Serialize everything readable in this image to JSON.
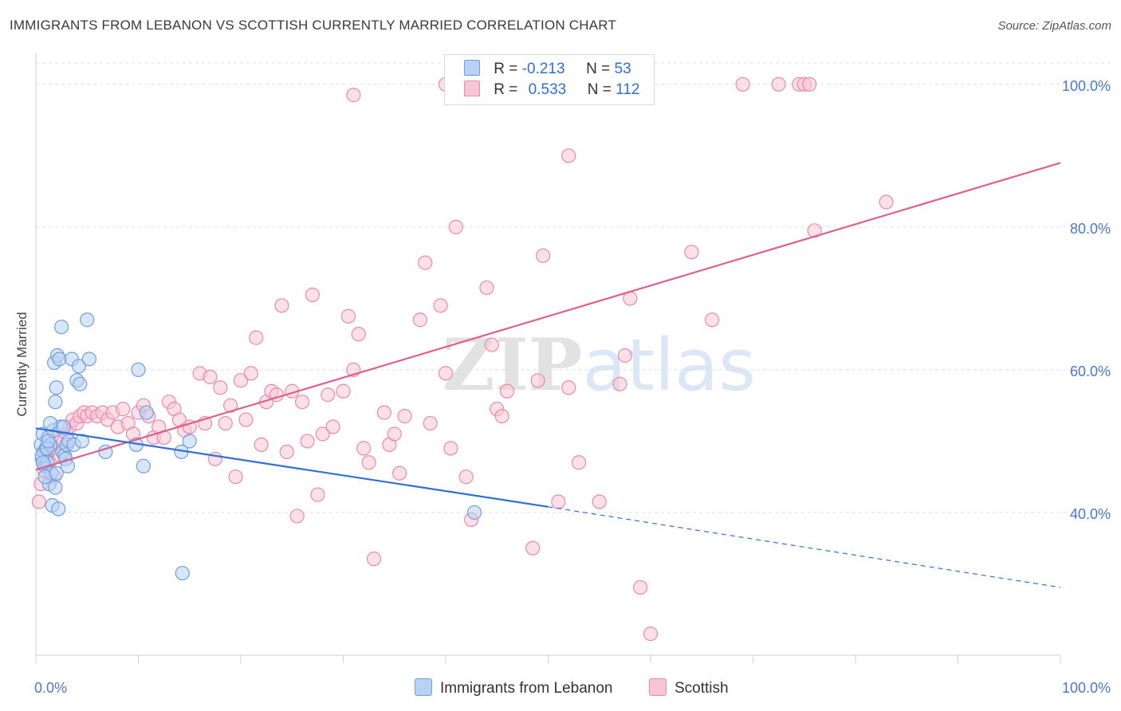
{
  "title": "IMMIGRANTS FROM LEBANON VS SCOTTISH CURRENTLY MARRIED CORRELATION CHART",
  "source": "Source: ZipAtlas.com",
  "watermark": {
    "zip": "ZIP",
    "atlas": "atlas"
  },
  "legend": {
    "rows": [
      {
        "r_label": "R =",
        "r_value": "-0.213",
        "n_label": "N =",
        "n_value": "53"
      },
      {
        "r_label": "R =",
        "r_value": "0.533",
        "n_label": "N =",
        "n_value": "112"
      }
    ]
  },
  "bottom_legend": [
    "Immigrants from Lebanon",
    "Scottish"
  ],
  "colors": {
    "blue_fill": "#b9d1f3",
    "blue_stroke": "#6e9fdf",
    "blue_line": "#2f6fd6",
    "pink_fill": "#f7c6d6",
    "pink_stroke": "#e98aaa",
    "pink_line": "#e0608a",
    "grid": "#dddddd",
    "tick_label": "#4a78c8"
  },
  "chart_data": {
    "type": "scatter",
    "title": "IMMIGRANTS FROM LEBANON VS SCOTTISH CURRENTLY MARRIED CORRELATION CHART",
    "xlabel": "",
    "ylabel": "Currently Married",
    "xlim": [
      0,
      100
    ],
    "ylim": [
      20,
      104
    ],
    "x_tick_labels": [
      "0.0%",
      "100.0%"
    ],
    "y_ticks": [
      40,
      60,
      80,
      100
    ],
    "y_tick_labels": [
      "40.0%",
      "60.0%",
      "80.0%",
      "100.0%"
    ],
    "grid": "horizontal dashed",
    "legend_position": "top-center",
    "series": [
      {
        "name": "Immigrants from Lebanon",
        "R": -0.213,
        "N": 53,
        "trend": {
          "x0": 0,
          "y0": 51.8,
          "x1": 50,
          "y1": 40.8,
          "dashed_to_x": 100,
          "dashed_to_y": 29.5
        },
        "points": [
          [
            0.5,
            49.5
          ],
          [
            0.6,
            47.5
          ],
          [
            0.7,
            51.0
          ],
          [
            0.8,
            48.5
          ],
          [
            0.9,
            46.5
          ],
          [
            1.0,
            49.0
          ],
          [
            1.1,
            47.0
          ],
          [
            1.2,
            50.5
          ],
          [
            1.3,
            44.0
          ],
          [
            1.4,
            49.5
          ],
          [
            1.5,
            45.5
          ],
          [
            1.6,
            41.0
          ],
          [
            1.7,
            51.5
          ],
          [
            1.8,
            61.0
          ],
          [
            1.9,
            55.5
          ],
          [
            2.0,
            57.5
          ],
          [
            2.1,
            62.0
          ],
          [
            2.2,
            40.5
          ],
          [
            2.3,
            61.5
          ],
          [
            2.4,
            52.0
          ],
          [
            2.5,
            66.0
          ],
          [
            2.6,
            48.5
          ],
          [
            2.7,
            52.0
          ],
          [
            2.8,
            48.0
          ],
          [
            2.9,
            47.5
          ],
          [
            3.0,
            49.5
          ],
          [
            3.2,
            50.0
          ],
          [
            3.5,
            61.5
          ],
          [
            3.7,
            49.5
          ],
          [
            4.0,
            58.5
          ],
          [
            4.2,
            60.5
          ],
          [
            4.3,
            58.0
          ],
          [
            4.5,
            50.0
          ],
          [
            5.0,
            67.0
          ],
          [
            5.2,
            61.5
          ],
          [
            6.8,
            48.5
          ],
          [
            9.8,
            49.5
          ],
          [
            10.0,
            60.0
          ],
          [
            10.5,
            46.5
          ],
          [
            10.8,
            54.0
          ],
          [
            14.2,
            48.5
          ],
          [
            15.0,
            50.0
          ],
          [
            14.3,
            31.5
          ],
          [
            42.8,
            40.0
          ],
          [
            0.9,
            45.0
          ],
          [
            1.4,
            52.5
          ],
          [
            0.6,
            48.0
          ],
          [
            2.0,
            45.5
          ],
          [
            1.1,
            49.0
          ],
          [
            0.7,
            47.0
          ],
          [
            3.1,
            46.5
          ],
          [
            1.9,
            43.5
          ],
          [
            1.2,
            50.0
          ]
        ]
      },
      {
        "name": "Scottish",
        "R": 0.533,
        "N": 112,
        "trend": {
          "x0": 0,
          "y0": 46.0,
          "x1": 100,
          "y1": 89.0
        },
        "points": [
          [
            0.3,
            41.5
          ],
          [
            0.5,
            44.0
          ],
          [
            0.8,
            46.0
          ],
          [
            1.0,
            48.0
          ],
          [
            1.3,
            47.0
          ],
          [
            1.6,
            49.0
          ],
          [
            1.8,
            45.0
          ],
          [
            2.1,
            50.5
          ],
          [
            2.4,
            48.0
          ],
          [
            2.7,
            50.0
          ],
          [
            3.0,
            51.0
          ],
          [
            3.3,
            52.0
          ],
          [
            3.6,
            53.0
          ],
          [
            4.0,
            52.5
          ],
          [
            4.3,
            53.5
          ],
          [
            4.7,
            54.0
          ],
          [
            5.0,
            53.5
          ],
          [
            5.5,
            54.0
          ],
          [
            6.0,
            53.5
          ],
          [
            6.5,
            54.0
          ],
          [
            7.0,
            53.0
          ],
          [
            7.5,
            54.0
          ],
          [
            8.0,
            52.0
          ],
          [
            8.5,
            54.5
          ],
          [
            9.0,
            52.5
          ],
          [
            9.5,
            51.0
          ],
          [
            10.0,
            54.0
          ],
          [
            10.5,
            55.0
          ],
          [
            11.0,
            53.5
          ],
          [
            11.5,
            50.5
          ],
          [
            12.0,
            52.0
          ],
          [
            12.5,
            50.5
          ],
          [
            13.0,
            55.5
          ],
          [
            13.5,
            54.5
          ],
          [
            14.0,
            53.0
          ],
          [
            14.5,
            51.5
          ],
          [
            15.0,
            52.0
          ],
          [
            16.0,
            59.5
          ],
          [
            16.5,
            52.5
          ],
          [
            17.0,
            59.0
          ],
          [
            17.5,
            47.5
          ],
          [
            18.0,
            57.5
          ],
          [
            18.5,
            52.5
          ],
          [
            19.0,
            55.0
          ],
          [
            19.5,
            45.0
          ],
          [
            20.0,
            58.5
          ],
          [
            20.5,
            53.0
          ],
          [
            21.0,
            59.5
          ],
          [
            21.5,
            64.5
          ],
          [
            22.0,
            49.5
          ],
          [
            22.5,
            55.5
          ],
          [
            23.0,
            57.0
          ],
          [
            23.5,
            56.5
          ],
          [
            24.0,
            69.0
          ],
          [
            24.5,
            48.5
          ],
          [
            25.0,
            57.0
          ],
          [
            25.5,
            39.5
          ],
          [
            26.0,
            55.5
          ],
          [
            26.5,
            50.0
          ],
          [
            27.0,
            70.5
          ],
          [
            27.5,
            42.5
          ],
          [
            28.0,
            51.0
          ],
          [
            28.5,
            56.5
          ],
          [
            29.0,
            52.0
          ],
          [
            30.0,
            57.0
          ],
          [
            30.5,
            67.5
          ],
          [
            31.0,
            60.0
          ],
          [
            31.5,
            65.0
          ],
          [
            32.0,
            49.0
          ],
          [
            32.5,
            47.0
          ],
          [
            33.0,
            33.5
          ],
          [
            34.0,
            54.0
          ],
          [
            34.5,
            49.5
          ],
          [
            35.0,
            51.0
          ],
          [
            35.5,
            45.5
          ],
          [
            36.0,
            53.5
          ],
          [
            37.5,
            67.0
          ],
          [
            38.0,
            75.0
          ],
          [
            38.5,
            52.5
          ],
          [
            39.5,
            69.0
          ],
          [
            40.0,
            59.5
          ],
          [
            40.5,
            49.0
          ],
          [
            41.0,
            80.0
          ],
          [
            42.0,
            45.0
          ],
          [
            42.5,
            39.0
          ],
          [
            44.0,
            71.5
          ],
          [
            44.5,
            63.5
          ],
          [
            45.0,
            54.5
          ],
          [
            45.5,
            53.5
          ],
          [
            46.0,
            57.0
          ],
          [
            49.0,
            58.5
          ],
          [
            49.5,
            76.0
          ],
          [
            51.0,
            41.5
          ],
          [
            52.0,
            57.5
          ],
          [
            53.0,
            47.0
          ],
          [
            55.0,
            41.5
          ],
          [
            57.0,
            58.0
          ],
          [
            57.5,
            62.0
          ],
          [
            58.0,
            70.0
          ],
          [
            59.0,
            29.5
          ],
          [
            60.0,
            23.0
          ],
          [
            64.0,
            76.5
          ],
          [
            66.0,
            67.0
          ],
          [
            76.0,
            79.5
          ],
          [
            83.0,
            83.5
          ],
          [
            31.0,
            98.5
          ],
          [
            52.0,
            90.0
          ],
          [
            69.0,
            100.0
          ],
          [
            72.5,
            100.0
          ],
          [
            74.5,
            100.0
          ],
          [
            75.0,
            100.0
          ],
          [
            75.5,
            100.0
          ],
          [
            48.5,
            35.0
          ],
          [
            40.0,
            100.0
          ]
        ]
      }
    ]
  }
}
